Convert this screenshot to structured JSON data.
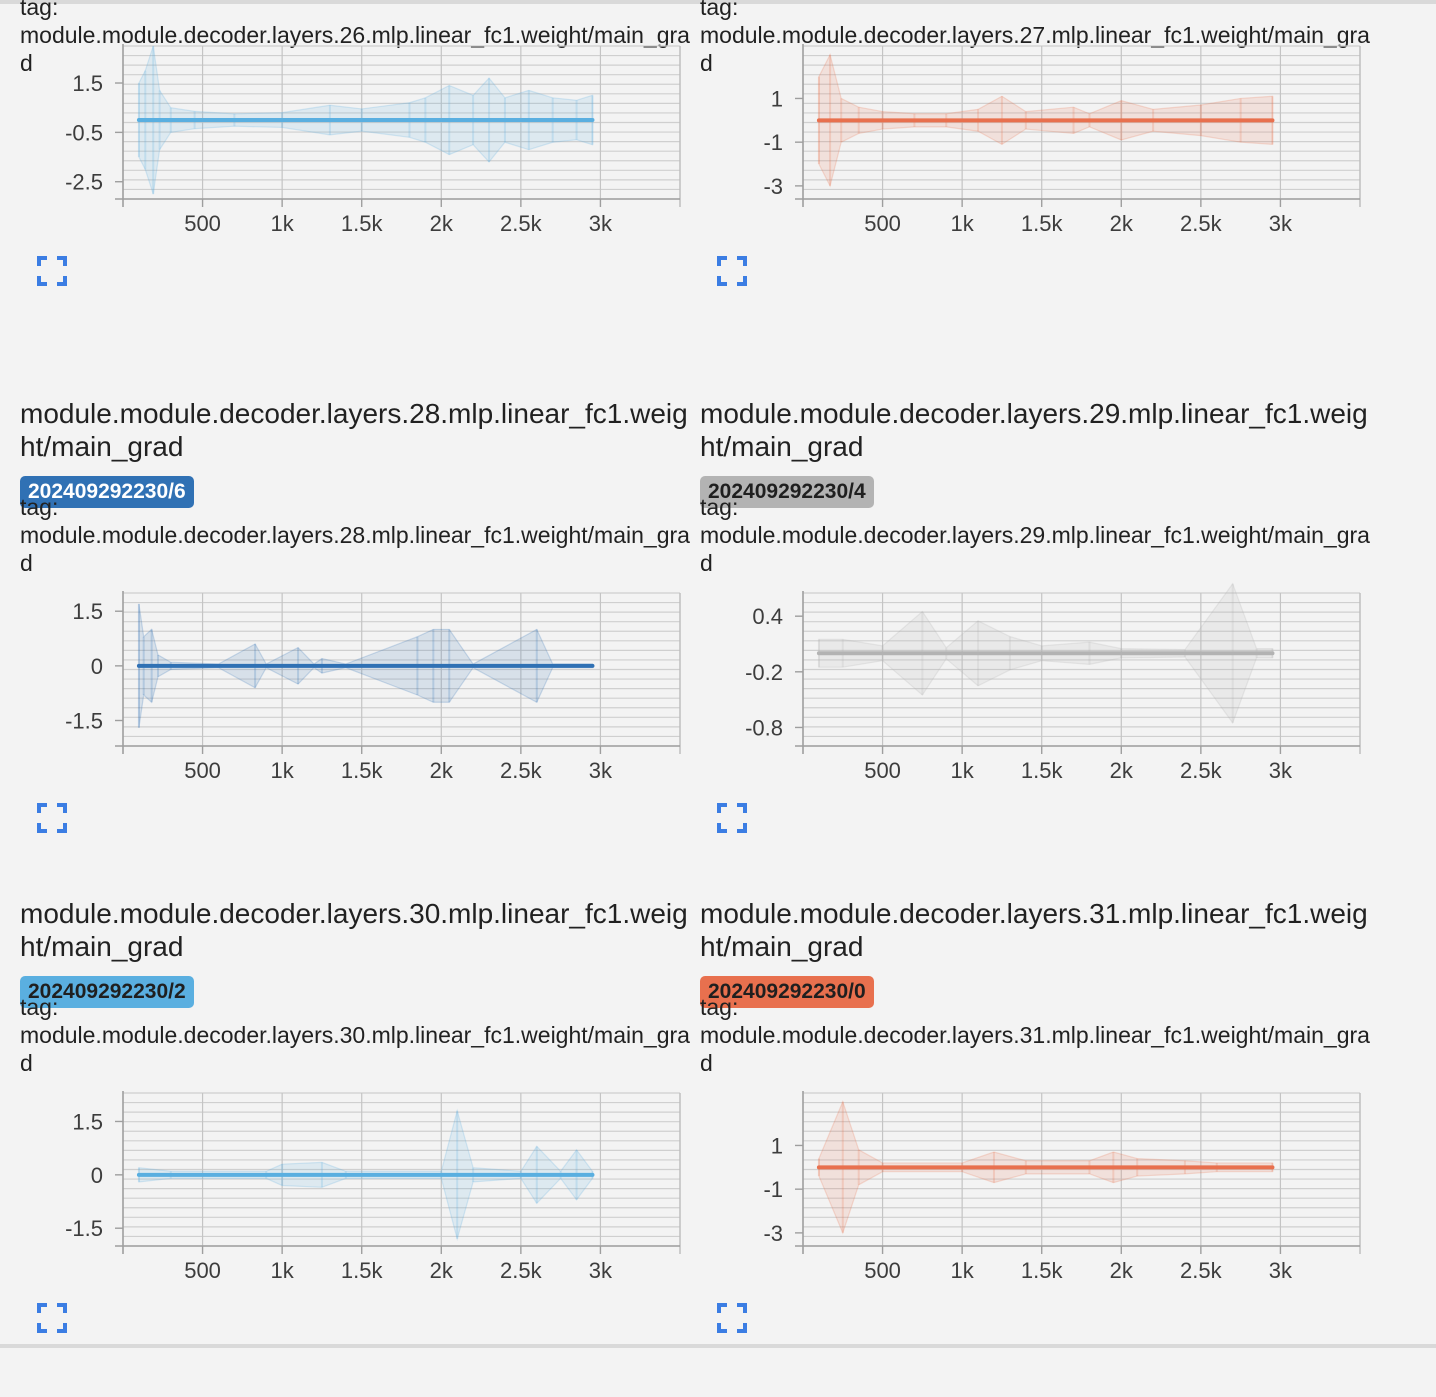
{
  "cards": [
    {
      "title": "",
      "run": "",
      "tag_label": "tag:",
      "tag": "module.module.decoder.layers.26.mlp.linear_fc1.weight/main_grad",
      "color": "#5aafe0",
      "badge_text_color": "#ffffff"
    },
    {
      "title": "",
      "run": "",
      "tag_label": "tag:",
      "tag": "module.module.decoder.layers.27.mlp.linear_fc1.weight/main_grad",
      "color": "#e8704e",
      "badge_text_color": "#ffffff"
    },
    {
      "title": "module.module.decoder.layers.28.mlp.linear_fc1.weight/main_grad",
      "run": "202409292230/6",
      "tag_label": "tag:",
      "tag": "module.module.decoder.layers.28.mlp.linear_fc1.weight/main_grad",
      "color": "#3071b4",
      "badge_text_color": "#ffffff"
    },
    {
      "title": "module.module.decoder.layers.29.mlp.linear_fc1.weight/main_grad",
      "run": "202409292230/4",
      "tag_label": "tag:",
      "tag": "module.module.decoder.layers.29.mlp.linear_fc1.weight/main_grad",
      "color": "#b3b3b3",
      "badge_text_color": "#1f1f1f"
    },
    {
      "title": "module.module.decoder.layers.30.mlp.linear_fc1.weight/main_grad",
      "run": "202409292230/2",
      "tag_label": "tag:",
      "tag": "module.module.decoder.layers.30.mlp.linear_fc1.weight/main_grad",
      "color": "#5aafe0",
      "badge_text_color": "#1f1f1f"
    },
    {
      "title": "module.module.decoder.layers.31.mlp.linear_fc1.weight/main_grad",
      "run": "202409292230/0",
      "tag_label": "tag:",
      "tag": "module.module.decoder.layers.31.mlp.linear_fc1.weight/main_grad",
      "color": "#e8704e",
      "badge_text_color": "#1f1f1f"
    }
  ],
  "expand_icon": "fullscreen-icon",
  "chart_data": [
    {
      "type": "line",
      "x_ticks": [
        500,
        1000,
        1500,
        2000,
        2500,
        3000
      ],
      "x_tick_labels": [
        "500",
        "1k",
        "1.5k",
        "2k",
        "2.5k",
        "3k"
      ],
      "xlim": [
        0,
        3500
      ],
      "y_ticks": [
        1.5,
        -0.5,
        -2.5
      ],
      "y_tick_labels": [
        "1.5",
        "-0.5",
        "-2.5"
      ],
      "ylim": [
        -3.2,
        3.0
      ],
      "line_y": 0,
      "x_range": [
        100,
        2950
      ],
      "band": [
        [
          100,
          1.5
        ],
        [
          140,
          2.0
        ],
        [
          190,
          3.0
        ],
        [
          230,
          1.2
        ],
        [
          300,
          0.5
        ],
        [
          450,
          0.35
        ],
        [
          700,
          0.25
        ],
        [
          1000,
          0.3
        ],
        [
          1300,
          0.6
        ],
        [
          1500,
          0.45
        ],
        [
          1800,
          0.7
        ],
        [
          1900,
          0.9
        ],
        [
          2050,
          1.4
        ],
        [
          2200,
          1.0
        ],
        [
          2300,
          1.7
        ],
        [
          2400,
          0.9
        ],
        [
          2550,
          1.2
        ],
        [
          2700,
          0.9
        ],
        [
          2850,
          0.8
        ],
        [
          2950,
          1.0
        ]
      ]
    },
    {
      "type": "line",
      "x_ticks": [
        500,
        1000,
        1500,
        2000,
        2500,
        3000
      ],
      "x_tick_labels": [
        "500",
        "1k",
        "1.5k",
        "2k",
        "2.5k",
        "3k"
      ],
      "xlim": [
        0,
        3500
      ],
      "y_ticks": [
        1,
        -1,
        -3
      ],
      "y_tick_labels": [
        "1",
        "-1",
        "-3"
      ],
      "ylim": [
        -3.6,
        3.4
      ],
      "line_y": 0,
      "x_range": [
        100,
        2950
      ],
      "band": [
        [
          100,
          2.0
        ],
        [
          170,
          3.0
        ],
        [
          240,
          1.0
        ],
        [
          350,
          0.6
        ],
        [
          500,
          0.4
        ],
        [
          700,
          0.3
        ],
        [
          900,
          0.3
        ],
        [
          1100,
          0.5
        ],
        [
          1250,
          1.1
        ],
        [
          1400,
          0.4
        ],
        [
          1700,
          0.6
        ],
        [
          1800,
          0.3
        ],
        [
          2000,
          0.9
        ],
        [
          2200,
          0.5
        ],
        [
          2500,
          0.7
        ],
        [
          2750,
          1.0
        ],
        [
          2950,
          1.1
        ]
      ]
    },
    {
      "type": "line",
      "x_ticks": [
        500,
        1000,
        1500,
        2000,
        2500,
        3000
      ],
      "x_tick_labels": [
        "500",
        "1k",
        "1.5k",
        "2k",
        "2.5k",
        "3k"
      ],
      "xlim": [
        0,
        3500
      ],
      "y_ticks": [
        1.5,
        0,
        -1.5
      ],
      "y_tick_labels": [
        "1.5",
        "0",
        "-1.5"
      ],
      "ylim": [
        -2.2,
        2.0
      ],
      "line_y": 0,
      "x_range": [
        100,
        2950
      ],
      "band": [
        [
          100,
          1.7
        ],
        [
          130,
          0.8
        ],
        [
          180,
          1.0
        ],
        [
          220,
          0.3
        ],
        [
          300,
          0.1
        ],
        [
          600,
          0.05
        ],
        [
          830,
          0.6
        ],
        [
          900,
          0.05
        ],
        [
          1100,
          0.5
        ],
        [
          1200,
          0.05
        ],
        [
          1250,
          0.2
        ],
        [
          1400,
          0.05
        ],
        [
          1850,
          0.8
        ],
        [
          1950,
          1.0
        ],
        [
          2050,
          1.0
        ],
        [
          2200,
          0.05
        ],
        [
          2600,
          1.0
        ],
        [
          2700,
          0.05
        ],
        [
          2950,
          0.05
        ]
      ]
    },
    {
      "type": "line",
      "x_ticks": [
        500,
        1000,
        1500,
        2000,
        2500,
        3000
      ],
      "x_tick_labels": [
        "500",
        "1k",
        "1.5k",
        "2k",
        "2.5k",
        "3k"
      ],
      "xlim": [
        0,
        3500
      ],
      "y_ticks": [
        0.4,
        -0.2,
        -0.8
      ],
      "y_tick_labels": [
        "0.4",
        "-0.2",
        "-0.8"
      ],
      "ylim": [
        -1.0,
        0.65
      ],
      "line_y": 0,
      "x_range": [
        100,
        2950
      ],
      "band": [
        [
          100,
          0.15
        ],
        [
          250,
          0.15
        ],
        [
          500,
          0.08
        ],
        [
          750,
          0.45
        ],
        [
          900,
          0.06
        ],
        [
          1100,
          0.35
        ],
        [
          1300,
          0.18
        ],
        [
          1500,
          0.08
        ],
        [
          1800,
          0.12
        ],
        [
          2000,
          0.05
        ],
        [
          2400,
          0.04
        ],
        [
          2700,
          0.75
        ],
        [
          2850,
          0.05
        ],
        [
          2950,
          0.05
        ]
      ]
    },
    {
      "type": "line",
      "x_ticks": [
        500,
        1000,
        1500,
        2000,
        2500,
        3000
      ],
      "x_tick_labels": [
        "500",
        "1k",
        "1.5k",
        "2k",
        "2.5k",
        "3k"
      ],
      "xlim": [
        0,
        3500
      ],
      "y_ticks": [
        1.5,
        0,
        -1.5
      ],
      "y_tick_labels": [
        "1.5",
        "0",
        "-1.5"
      ],
      "ylim": [
        -2.0,
        2.3
      ],
      "line_y": 0,
      "x_range": [
        100,
        2950
      ],
      "band": [
        [
          100,
          0.2
        ],
        [
          300,
          0.1
        ],
        [
          900,
          0.1
        ],
        [
          1000,
          0.3
        ],
        [
          1250,
          0.35
        ],
        [
          1400,
          0.1
        ],
        [
          2000,
          0.1
        ],
        [
          2100,
          1.8
        ],
        [
          2200,
          0.2
        ],
        [
          2500,
          0.1
        ],
        [
          2600,
          0.8
        ],
        [
          2750,
          0.1
        ],
        [
          2850,
          0.7
        ],
        [
          2950,
          0.1
        ]
      ]
    },
    {
      "type": "line",
      "x_ticks": [
        500,
        1000,
        1500,
        2000,
        2500,
        3000
      ],
      "x_tick_labels": [
        "500",
        "1k",
        "1.5k",
        "2k",
        "2.5k",
        "3k"
      ],
      "xlim": [
        0,
        3500
      ],
      "y_ticks": [
        1,
        -1,
        -3
      ],
      "y_tick_labels": [
        "1",
        "-1",
        "-3"
      ],
      "ylim": [
        -3.6,
        3.4
      ],
      "line_y": 0,
      "x_range": [
        100,
        2950
      ],
      "band": [
        [
          100,
          0.4
        ],
        [
          250,
          3.0
        ],
        [
          350,
          0.8
        ],
        [
          500,
          0.2
        ],
        [
          1000,
          0.2
        ],
        [
          1200,
          0.7
        ],
        [
          1400,
          0.3
        ],
        [
          1800,
          0.3
        ],
        [
          1950,
          0.7
        ],
        [
          2100,
          0.4
        ],
        [
          2400,
          0.3
        ],
        [
          2600,
          0.2
        ],
        [
          2950,
          0.2
        ]
      ]
    }
  ]
}
